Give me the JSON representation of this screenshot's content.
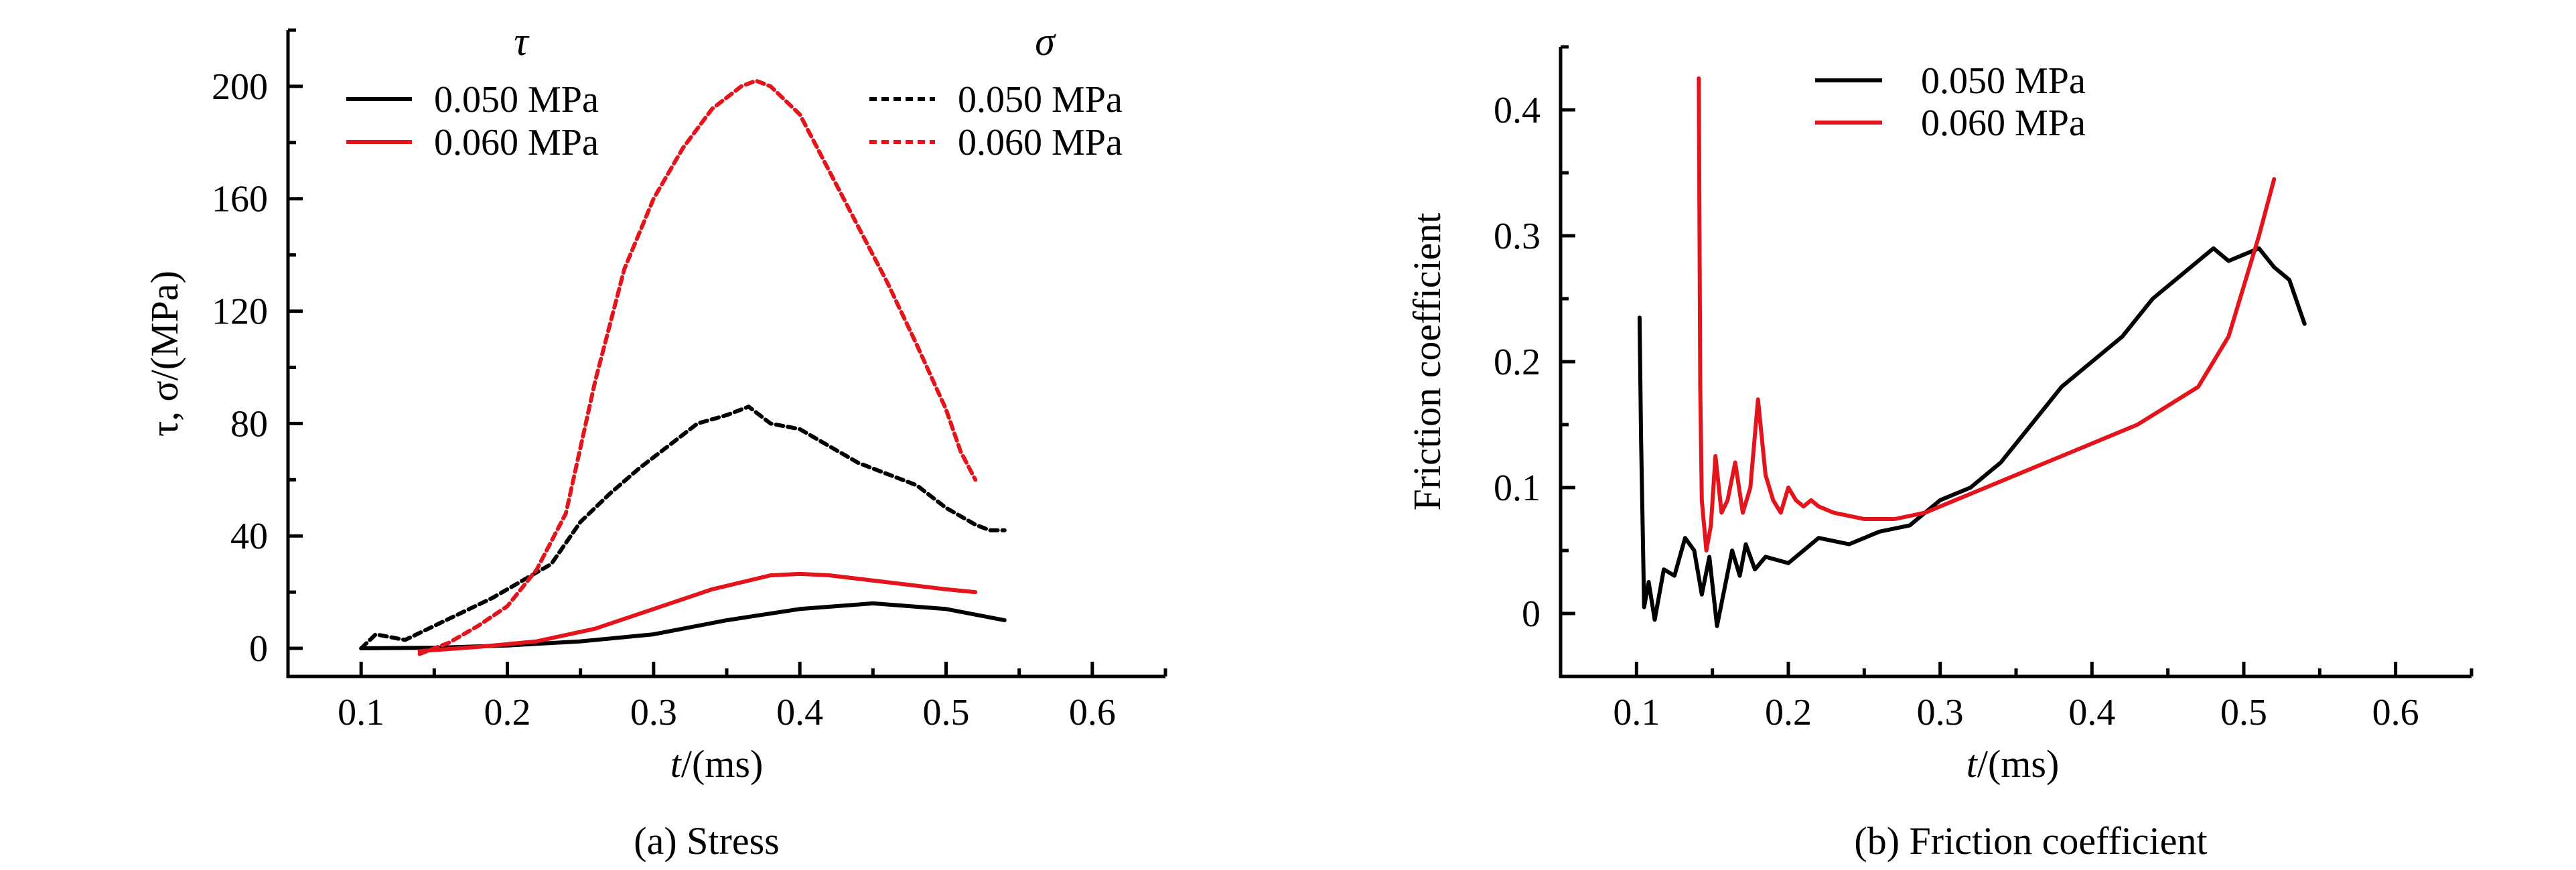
{
  "colors": {
    "black": "#000000",
    "red": "#e3141b"
  },
  "chart_data": [
    {
      "type": "line",
      "caption": "(a) Stress",
      "xlabel_italic": "t",
      "xlabel_rest": "/(ms)",
      "ylabel": "τ, σ/(MPa)",
      "xlim": [
        0.05,
        0.65
      ],
      "ylim": [
        -10,
        220
      ],
      "xticks": [
        0.1,
        0.2,
        0.3,
        0.4,
        0.5,
        0.6
      ],
      "xtick_labels": [
        "0.1",
        "0.2",
        "0.3",
        "0.4",
        "0.5",
        "0.6"
      ],
      "yticks": [
        0,
        40,
        80,
        120,
        160,
        200
      ],
      "ytick_labels": [
        "0",
        "40",
        "80",
        "120",
        "160",
        "200"
      ],
      "legend_group_tau": "τ",
      "legend_group_sigma": "σ",
      "series": [
        {
          "name": "0.050 MPa",
          "group": "τ",
          "color": "#000000",
          "dash": "solid",
          "x": [
            0.1,
            0.15,
            0.2,
            0.25,
            0.3,
            0.35,
            0.4,
            0.45,
            0.5,
            0.54
          ],
          "y": [
            0,
            0.2,
            1,
            2.5,
            5,
            10,
            14,
            16,
            14,
            10
          ]
        },
        {
          "name": "0.060 MPa",
          "group": "τ",
          "color": "#e3141b",
          "dash": "solid",
          "x": [
            0.14,
            0.18,
            0.22,
            0.26,
            0.3,
            0.34,
            0.38,
            0.4,
            0.42,
            0.46,
            0.5,
            0.52
          ],
          "y": [
            -1,
            0.5,
            2.5,
            7,
            14,
            21,
            26,
            26.5,
            26,
            23.5,
            21,
            20
          ]
        },
        {
          "name": "0.050 MPa",
          "group": "σ",
          "color": "#000000",
          "dash": "dash",
          "x": [
            0.1,
            0.11,
            0.13,
            0.15,
            0.17,
            0.19,
            0.21,
            0.23,
            0.25,
            0.27,
            0.29,
            0.31,
            0.33,
            0.35,
            0.365,
            0.38,
            0.4,
            0.42,
            0.44,
            0.46,
            0.48,
            0.5,
            0.52,
            0.53,
            0.54
          ],
          "y": [
            0,
            5,
            3,
            8,
            13,
            18,
            24,
            30,
            45,
            55,
            64,
            72,
            80,
            83,
            86,
            80,
            78,
            72,
            66,
            62,
            58,
            50,
            44,
            42,
            42
          ]
        },
        {
          "name": "0.060 MPa",
          "group": "σ",
          "color": "#e3141b",
          "dash": "dash",
          "x": [
            0.14,
            0.16,
            0.18,
            0.2,
            0.22,
            0.24,
            0.26,
            0.28,
            0.3,
            0.32,
            0.34,
            0.36,
            0.37,
            0.38,
            0.4,
            0.42,
            0.44,
            0.46,
            0.48,
            0.5,
            0.51,
            0.52
          ],
          "y": [
            -2,
            2,
            8,
            15,
            28,
            48,
            95,
            135,
            160,
            178,
            192,
            200,
            202,
            200,
            190,
            170,
            150,
            130,
            108,
            85,
            70,
            60
          ]
        }
      ]
    },
    {
      "type": "line",
      "caption": "(b) Friction coefficient",
      "xlabel_italic": "t",
      "xlabel_rest": "/(ms)",
      "ylabel": "Friction coefficient",
      "xlim": [
        0.05,
        0.65
      ],
      "ylim": [
        -0.05,
        0.45
      ],
      "xticks": [
        0.1,
        0.2,
        0.3,
        0.4,
        0.5,
        0.6
      ],
      "xtick_labels": [
        "0.1",
        "0.2",
        "0.3",
        "0.4",
        "0.5",
        "0.6"
      ],
      "yticks": [
        0,
        0.1,
        0.2,
        0.3,
        0.4
      ],
      "ytick_labels": [
        "0",
        "0.1",
        "0.2",
        "0.3",
        "0.4"
      ],
      "series": [
        {
          "name": "0.050 MPa",
          "color": "#000000",
          "dash": "solid",
          "x": [
            0.102,
            0.103,
            0.105,
            0.108,
            0.112,
            0.118,
            0.125,
            0.132,
            0.138,
            0.143,
            0.148,
            0.153,
            0.158,
            0.163,
            0.168,
            0.172,
            0.178,
            0.185,
            0.2,
            0.22,
            0.24,
            0.26,
            0.28,
            0.3,
            0.32,
            0.34,
            0.36,
            0.38,
            0.4,
            0.42,
            0.44,
            0.46,
            0.48,
            0.49,
            0.5,
            0.51,
            0.52,
            0.53,
            0.54
          ],
          "y": [
            0.235,
            0.14,
            0.005,
            0.025,
            -0.005,
            0.035,
            0.03,
            0.06,
            0.05,
            0.015,
            0.045,
            -0.01,
            0.02,
            0.05,
            0.03,
            0.055,
            0.035,
            0.045,
            0.04,
            0.06,
            0.055,
            0.065,
            0.07,
            0.09,
            0.1,
            0.12,
            0.15,
            0.18,
            0.2,
            0.22,
            0.25,
            0.27,
            0.29,
            0.28,
            0.285,
            0.29,
            0.275,
            0.265,
            0.23
          ]
        },
        {
          "name": "0.060 MPa",
          "color": "#e3141b",
          "dash": "solid",
          "x": [
            0.141,
            0.142,
            0.143,
            0.146,
            0.149,
            0.152,
            0.156,
            0.16,
            0.165,
            0.17,
            0.175,
            0.18,
            0.185,
            0.19,
            0.195,
            0.2,
            0.205,
            0.21,
            0.215,
            0.22,
            0.23,
            0.25,
            0.27,
            0.29,
            0.31,
            0.33,
            0.35,
            0.37,
            0.39,
            0.41,
            0.43,
            0.45,
            0.47,
            0.49,
            0.5,
            0.51,
            0.52
          ],
          "y": [
            0.425,
            0.18,
            0.09,
            0.05,
            0.07,
            0.125,
            0.08,
            0.09,
            0.12,
            0.08,
            0.1,
            0.17,
            0.11,
            0.09,
            0.08,
            0.1,
            0.09,
            0.085,
            0.09,
            0.085,
            0.08,
            0.075,
            0.075,
            0.08,
            0.09,
            0.1,
            0.11,
            0.12,
            0.13,
            0.14,
            0.15,
            0.165,
            0.18,
            0.22,
            0.26,
            0.3,
            0.345
          ]
        }
      ]
    }
  ]
}
